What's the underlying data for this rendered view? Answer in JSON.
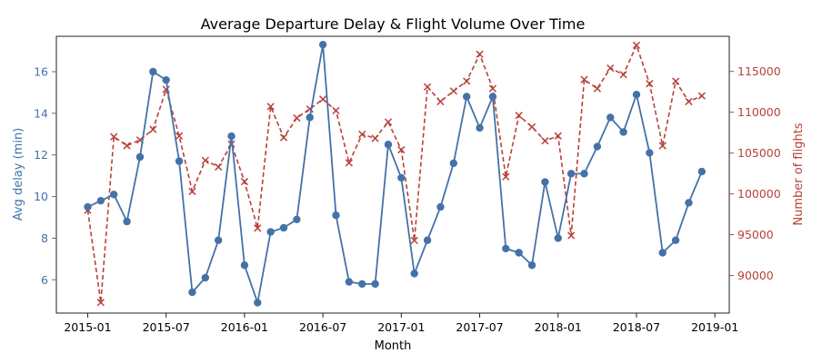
{
  "chart_data": {
    "type": "line",
    "title": "Average Departure Delay & Flight Volume Over Time",
    "xlabel": "Month",
    "ylabel_left": "Avg delay (min)",
    "ylabel_right": "Number of flights",
    "x_ticks": [
      "2015-01",
      "2015-07",
      "2016-01",
      "2016-07",
      "2017-01",
      "2017-07",
      "2018-01",
      "2018-07",
      "2019-01"
    ],
    "y_left_ticks": [
      6,
      8,
      10,
      12,
      14,
      16
    ],
    "y_right_ticks": [
      90000,
      95000,
      100000,
      105000,
      110000,
      115000
    ],
    "y_right_tick_labels": [
      "90000",
      "95000",
      "100000",
      "105000",
      "110000",
      "115000"
    ],
    "ylim_left": [
      4.4,
      17.7
    ],
    "ylim_right": [
      85400,
      119300
    ],
    "months": [
      "2015-01",
      "2015-02",
      "2015-03",
      "2015-04",
      "2015-05",
      "2015-06",
      "2015-07",
      "2015-08",
      "2015-09",
      "2015-10",
      "2015-11",
      "2015-12",
      "2016-01",
      "2016-02",
      "2016-03",
      "2016-04",
      "2016-05",
      "2016-06",
      "2016-07",
      "2016-08",
      "2016-09",
      "2016-10",
      "2016-11",
      "2016-12",
      "2017-01",
      "2017-02",
      "2017-03",
      "2017-04",
      "2017-05",
      "2017-06",
      "2017-07",
      "2017-08",
      "2017-09",
      "2017-10",
      "2017-11",
      "2017-12",
      "2018-01",
      "2018-02",
      "2018-03",
      "2018-04",
      "2018-05",
      "2018-06",
      "2018-07",
      "2018-08",
      "2018-09",
      "2018-10",
      "2018-11",
      "2018-12"
    ],
    "series": [
      {
        "axis": "left",
        "color": "#4472a8",
        "marker": "circle",
        "line": "solid",
        "values": [
          9.5,
          9.8,
          10.1,
          8.8,
          11.9,
          16.0,
          15.6,
          11.7,
          5.4,
          6.1,
          7.9,
          12.9,
          6.7,
          4.9,
          8.3,
          8.5,
          8.9,
          13.8,
          17.3,
          9.1,
          5.9,
          5.8,
          5.8,
          12.5,
          10.9,
          6.3,
          7.9,
          9.5,
          11.6,
          14.8,
          13.3,
          14.8,
          7.5,
          7.3,
          6.7,
          10.7,
          8.0,
          11.1,
          11.1,
          12.4,
          13.8,
          13.1,
          14.9,
          12.1,
          7.3,
          7.9,
          9.7,
          11.2
        ]
      },
      {
        "axis": "right",
        "color": "#b8413a",
        "marker": "x",
        "line": "dashed",
        "values": [
          98000,
          86700,
          107000,
          105900,
          106600,
          107900,
          112800,
          107100,
          100300,
          104100,
          103300,
          106100,
          101500,
          95800,
          110700,
          106900,
          109300,
          110400,
          111600,
          110200,
          103800,
          107300,
          106800,
          108800,
          105400,
          94300,
          113100,
          111300,
          112600,
          113800,
          117100,
          112900,
          102100,
          109600,
          108200,
          106500,
          107100,
          94900,
          114000,
          112900,
          115400,
          114600,
          118200,
          113500,
          105900,
          113800,
          111300,
          112000
        ]
      }
    ]
  }
}
